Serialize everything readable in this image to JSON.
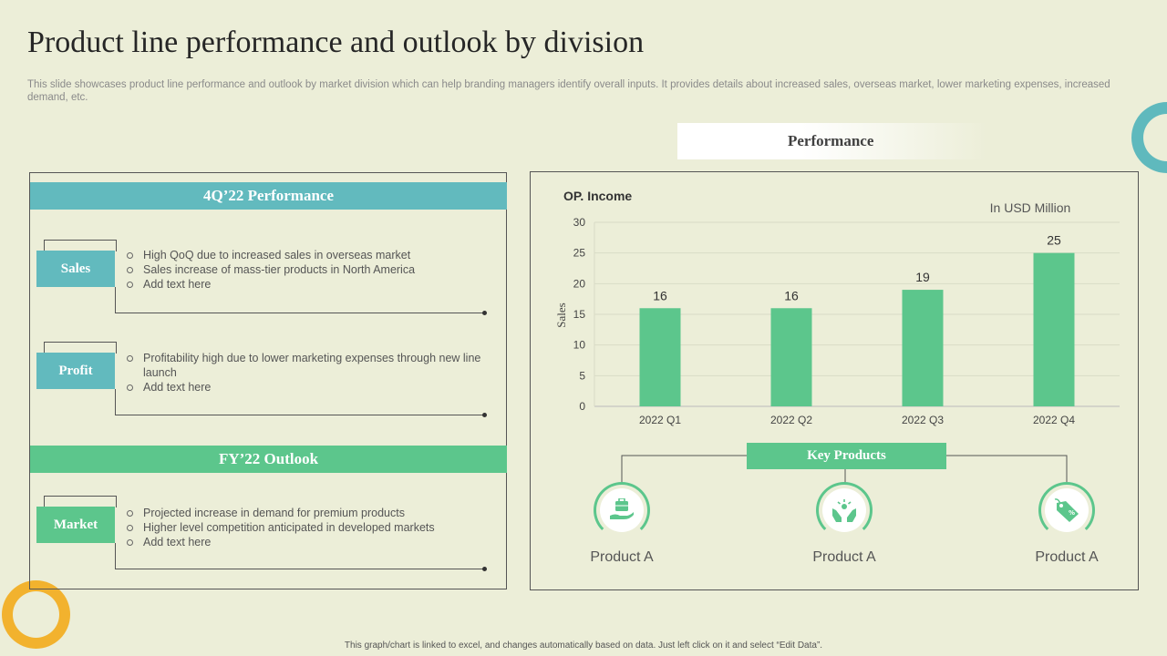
{
  "page": {
    "title": "Product line performance and outlook by division",
    "subtitle": "This slide showcases product line performance and outlook by market division which can help branding managers identify overall inputs. It provides details about increased sales, overseas market, lower marketing expenses, increased demand, etc.",
    "footnote": "This graph/chart is linked to excel, and changes automatically based on data. Just left click on it and select “Edit Data”."
  },
  "left": {
    "q4_band": "4Q’22 Performance",
    "fy_band": "FY’22 Outlook",
    "sales": {
      "label": "Sales",
      "bullets": [
        "High QoQ due to increased sales in overseas  market",
        "Sales increase of mass-tier products in North America",
        "Add text here"
      ]
    },
    "profit": {
      "label": "Profit",
      "bullets": [
        "Profitability high due to lower marketing expenses through  new line launch",
        "Add text here"
      ]
    },
    "market": {
      "label": "Market",
      "bullets": [
        "Projected increase in demand for premium products",
        "Higher level competition anticipated in developed  markets",
        "Add text here"
      ]
    }
  },
  "right": {
    "header": "Performance",
    "key_products": "Key Products",
    "products": [
      {
        "name": "Product A",
        "icon": "briefcase-hand-icon"
      },
      {
        "name": "Product A",
        "icon": "hands-growth-icon"
      },
      {
        "name": "Product A",
        "icon": "price-tag-icon"
      }
    ]
  },
  "colors": {
    "teal": "#62babe",
    "green": "#5cc68c",
    "background": "#eceed8"
  },
  "chart_data": {
    "type": "bar",
    "title": "OP. Income",
    "unit_note": "In USD Million",
    "categories": [
      "2022 Q1",
      "2022 Q2",
      "2022 Q3",
      "2022 Q4"
    ],
    "values": [
      16,
      16,
      19,
      25
    ],
    "xlabel": "",
    "ylabel": "Sales",
    "ylim": [
      0,
      30
    ],
    "yticks": [
      0,
      5,
      10,
      15,
      20,
      25,
      30
    ],
    "grid": true,
    "color": "#5cc68c"
  }
}
